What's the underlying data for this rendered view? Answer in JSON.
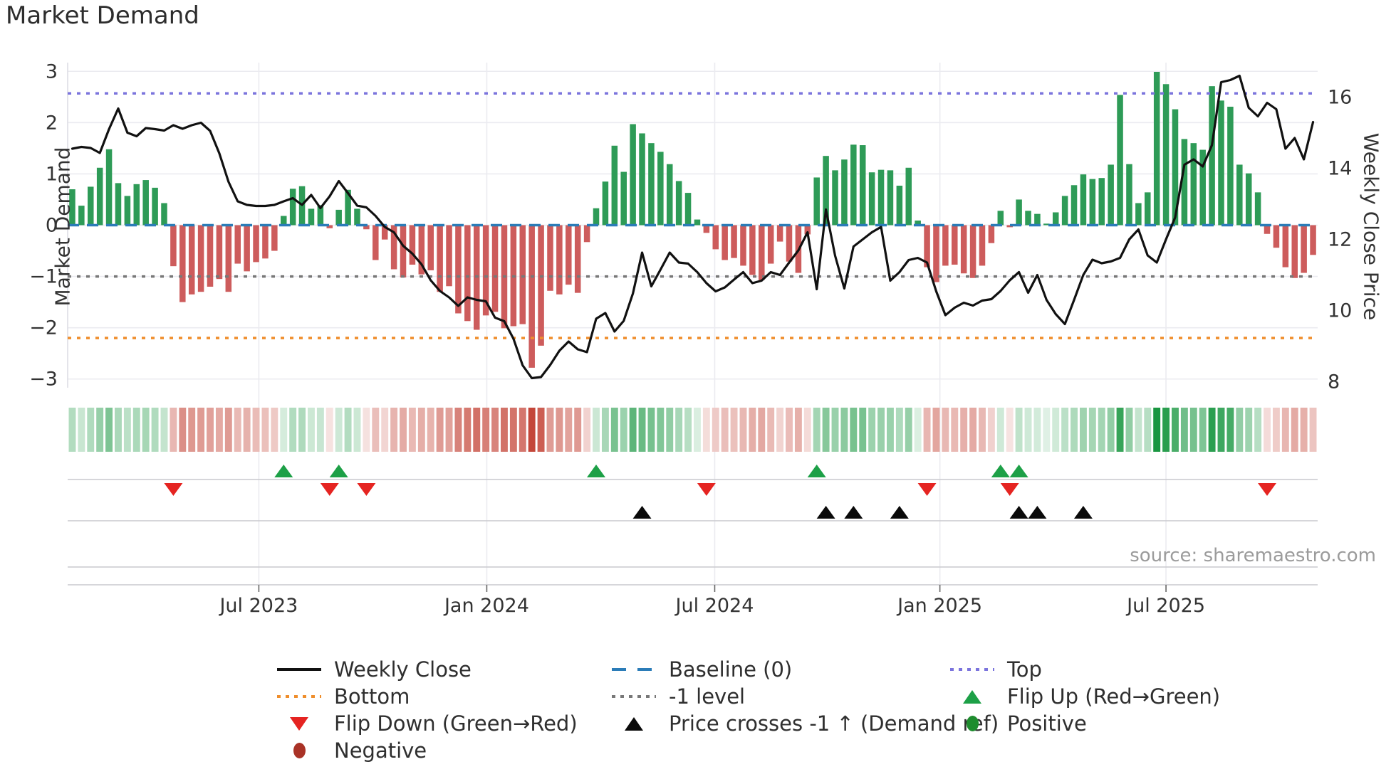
{
  "title": "Market Demand",
  "source_text": "source: sharemaestro.com",
  "axes": {
    "left_label": "Market Demand",
    "right_label": "Weekly Close Price",
    "left_tick_labels": [
      "3",
      "2",
      "1",
      "0",
      "−1",
      "−2",
      "−3"
    ],
    "left_tick_values": [
      3,
      2,
      1,
      0,
      -1,
      -2,
      -3
    ],
    "right_tick_labels": [
      "16",
      "14",
      "12",
      "10",
      "8"
    ],
    "right_tick_values": [
      16,
      14,
      12,
      10,
      8
    ],
    "x_ticks": [
      {
        "label": "Jul 2023",
        "pos": 20.3
      },
      {
        "label": "Jan 2024",
        "pos": 45.1
      },
      {
        "label": "Jul 2024",
        "pos": 69.9
      },
      {
        "label": "Jan 2025",
        "pos": 94.4
      },
      {
        "label": "Jul 2025",
        "pos": 119.0
      }
    ]
  },
  "colors": {
    "bar_positive": "#2e9b57",
    "bar_negative": "#cd5c5c",
    "price_line": "#111111",
    "baseline": "#2b7cb8",
    "top_line": "#7b74dd",
    "bottom_line": "#ef8e2c",
    "minus_one_line": "#787878",
    "flip_up_marker": "#1da047",
    "flip_down_marker": "#e52421",
    "price_cross_marker": "#0a0a0a",
    "heat_green_base": "#189640",
    "heat_red_base": "#c0392b",
    "gridline": "#ebebf0",
    "band_line": "#c9c9ce",
    "tick_text": "#333333"
  },
  "chart_data": {
    "type": "bar",
    "title": "Market Demand",
    "xlabel": "",
    "ylabel_left": "Market Demand",
    "ylabel_right": "Weekly Close Price",
    "x_description": "weekly observations, Feb 2023 - Oct 2025",
    "ylim_left": [
      -3.17,
      3.17
    ],
    "ylim_right": [
      7.83,
      16.97
    ],
    "grid": true,
    "legend_position": "below",
    "reference_lines": {
      "baseline": 0,
      "top": 2.57,
      "bottom": -2.2,
      "minus_one": -1
    },
    "series": [
      {
        "name": "Market Demand",
        "type": "bar",
        "values": [
          0.7,
          0.38,
          0.75,
          1.12,
          1.48,
          0.82,
          0.57,
          0.8,
          0.88,
          0.73,
          0.43,
          -0.8,
          -1.5,
          -1.35,
          -1.3,
          -1.2,
          -1.05,
          -1.3,
          -0.75,
          -0.9,
          -0.72,
          -0.65,
          -0.5,
          0.18,
          0.71,
          0.76,
          0.32,
          0.39,
          -0.06,
          0.3,
          0.69,
          0.32,
          -0.08,
          -0.68,
          -0.28,
          -0.86,
          -1.02,
          -0.77,
          -0.96,
          -0.88,
          -1.3,
          -1.19,
          -1.72,
          -1.87,
          -2.04,
          -1.76,
          -1.69,
          -2.01,
          -1.97,
          -1.93,
          -2.78,
          -2.35,
          -1.28,
          -1.35,
          -1.16,
          -1.32,
          -0.33,
          0.33,
          0.85,
          1.55,
          1.04,
          1.97,
          1.79,
          1.6,
          1.43,
          1.19,
          0.86,
          0.63,
          0.11,
          -0.15,
          -0.47,
          -0.68,
          -0.64,
          -0.79,
          -0.97,
          -1.07,
          -0.75,
          -0.32,
          -0.71,
          -0.93,
          -0.18,
          0.93,
          1.35,
          1.07,
          1.28,
          1.57,
          1.56,
          1.03,
          1.08,
          1.07,
          0.77,
          1.12,
          0.09,
          -0.82,
          -1.11,
          -0.79,
          -0.77,
          -0.94,
          -1.03,
          -0.79,
          -0.35,
          0.28,
          -0.04,
          0.5,
          0.28,
          0.22,
          0.03,
          0.25,
          0.57,
          0.78,
          0.99,
          0.9,
          0.92,
          1.18,
          2.54,
          1.19,
          0.43,
          0.64,
          2.99,
          2.75,
          2.26,
          1.68,
          1.6,
          1.47,
          2.71,
          2.43,
          2.31,
          1.18,
          1.01,
          0.64,
          -0.17,
          -0.44,
          -0.82,
          -1.03,
          -0.93,
          -0.58
        ]
      },
      {
        "name": "Weekly Close",
        "type": "line",
        "values": [
          14.55,
          14.6,
          14.57,
          14.43,
          15.1,
          15.68,
          15.0,
          14.9,
          15.13,
          15.1,
          15.06,
          15.21,
          15.11,
          15.21,
          15.28,
          15.05,
          14.42,
          13.62,
          13.07,
          12.97,
          12.94,
          12.94,
          12.97,
          13.07,
          13.16,
          12.97,
          13.25,
          12.88,
          13.21,
          13.64,
          13.3,
          12.95,
          12.9,
          12.66,
          12.35,
          12.2,
          11.82,
          11.6,
          11.3,
          10.85,
          10.55,
          10.37,
          10.13,
          10.37,
          10.3,
          10.26,
          9.8,
          9.7,
          9.21,
          8.46,
          8.1,
          8.13,
          8.47,
          8.87,
          9.13,
          8.91,
          8.83,
          9.77,
          9.93,
          9.41,
          9.71,
          10.48,
          11.63,
          10.68,
          11.15,
          11.63,
          11.35,
          11.32,
          11.08,
          10.77,
          10.54,
          10.65,
          10.87,
          11.08,
          10.77,
          10.84,
          11.08,
          11.0,
          11.35,
          11.69,
          12.2,
          10.6,
          12.84,
          11.54,
          10.62,
          11.8,
          12.0,
          12.2,
          12.35,
          10.84,
          11.08,
          11.42,
          11.48,
          11.35,
          10.54,
          9.87,
          10.08,
          10.22,
          10.14,
          10.28,
          10.32,
          10.55,
          10.85,
          11.08,
          10.5,
          11.0,
          10.3,
          9.9,
          9.62,
          10.3,
          11.0,
          11.43,
          11.33,
          11.38,
          11.48,
          12.0,
          12.28,
          11.55,
          11.35,
          12.0,
          12.62,
          14.1,
          14.25,
          14.05,
          14.65,
          16.42,
          16.48,
          16.6,
          15.7,
          15.46,
          15.84,
          15.66,
          14.55,
          14.85,
          14.25,
          15.3
        ]
      }
    ],
    "markers": {
      "flip_up_weeks": [
        23,
        29,
        57,
        81,
        101,
        103
      ],
      "flip_down_weeks": [
        11,
        28,
        32,
        69,
        93,
        102,
        130
      ],
      "price_cross_weeks": [
        62,
        82,
        85,
        90,
        103,
        105,
        110
      ]
    },
    "heatmap": {
      "description": "strip of weekly cells, color intensity from Market Demand bar values (green positive, red negative)"
    }
  },
  "legend": {
    "items": [
      {
        "label": "Weekly Close"
      },
      {
        "label": "Bottom"
      },
      {
        "label": "Flip Down (Green→Red)"
      },
      {
        "label": "Negative"
      },
      {
        "label": "Baseline (0)"
      },
      {
        "label": "-1 level"
      },
      {
        "label": "Price crosses -1 ↑ (Demand ref)"
      },
      {
        "label": "Top"
      },
      {
        "label": "Flip Up (Red→Green)"
      },
      {
        "label": "Positive"
      }
    ]
  }
}
